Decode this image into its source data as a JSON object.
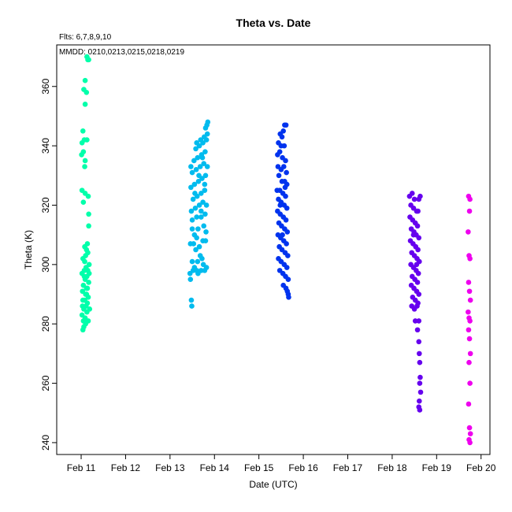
{
  "chart_data": {
    "type": "scatter",
    "title": "Theta  vs. Date",
    "annotations": {
      "flts": "Flts: 6,7,8,9,10",
      "mmdd": "MMDD: 0210,0213,0215,0218,0219"
    },
    "xlabel": "Date (UTC)",
    "ylabel": "Theta (K)",
    "x_unit": "days since Feb 11 00:00 UTC",
    "xlim": [
      -0.55,
      9.2
    ],
    "ylim": [
      236,
      374
    ],
    "x_ticks": [
      {
        "value": 0,
        "label": "Feb 11"
      },
      {
        "value": 1,
        "label": "Feb 12"
      },
      {
        "value": 2,
        "label": "Feb 13"
      },
      {
        "value": 3,
        "label": "Feb 14"
      },
      {
        "value": 4,
        "label": "Feb 15"
      },
      {
        "value": 5,
        "label": "Feb 16"
      },
      {
        "value": 6,
        "label": "Feb 17"
      },
      {
        "value": 7,
        "label": "Feb 18"
      },
      {
        "value": 8,
        "label": "Feb 19"
      },
      {
        "value": 9,
        "label": "Feb 20"
      }
    ],
    "y_ticks": [
      240,
      260,
      280,
      300,
      320,
      340,
      360
    ],
    "grid": false,
    "legend": "none",
    "series": [
      {
        "color": "#00ffaa",
        "points": [
          [
            0.13,
            370
          ],
          [
            0.15,
            369
          ],
          [
            0.17,
            369
          ],
          [
            0.09,
            362
          ],
          [
            0.06,
            359
          ],
          [
            0.12,
            358
          ],
          [
            0.09,
            354
          ],
          [
            0.04,
            345
          ],
          [
            0.07,
            342
          ],
          [
            0.13,
            342
          ],
          [
            0.02,
            341
          ],
          [
            0.05,
            338
          ],
          [
            0.01,
            337
          ],
          [
            0.09,
            335
          ],
          [
            0.08,
            333
          ],
          [
            0.02,
            325
          ],
          [
            0.09,
            324
          ],
          [
            0.16,
            323
          ],
          [
            0.05,
            321
          ],
          [
            0.17,
            317
          ],
          [
            0.17,
            313
          ],
          [
            0.14,
            307
          ],
          [
            0.08,
            306
          ],
          [
            0.12,
            305
          ],
          [
            0.15,
            304
          ],
          [
            0.1,
            303
          ],
          [
            0.04,
            302
          ],
          [
            0.18,
            300
          ],
          [
            0.11,
            299
          ],
          [
            0.15,
            298
          ],
          [
            0.07,
            298
          ],
          [
            0.02,
            297
          ],
          [
            0.13,
            296
          ],
          [
            0.09,
            295
          ],
          [
            0.17,
            294
          ],
          [
            0.05,
            293
          ],
          [
            0.12,
            292
          ],
          [
            0.03,
            291
          ],
          [
            0.1,
            290
          ],
          [
            0.16,
            289
          ],
          [
            0.08,
            288
          ],
          [
            0.04,
            288
          ],
          [
            0.14,
            287
          ],
          [
            0.11,
            286
          ],
          [
            0.06,
            285
          ],
          [
            0.19,
            285
          ],
          [
            0.13,
            284
          ],
          [
            0.02,
            283
          ],
          [
            0.09,
            282
          ],
          [
            0.16,
            281
          ],
          [
            0.05,
            281
          ],
          [
            0.1,
            280
          ],
          [
            0.06,
            279
          ],
          [
            0.04,
            278
          ],
          [
            0.12,
            290
          ],
          [
            0.07,
            296
          ],
          [
            0.14,
            292
          ],
          [
            0.03,
            286
          ],
          [
            0.18,
            297
          ],
          [
            0.08,
            301
          ]
        ]
      },
      {
        "color": "#00bbee",
        "points": [
          [
            2.49,
            286
          ],
          [
            2.48,
            288
          ],
          [
            2.46,
            295
          ],
          [
            2.45,
            297
          ],
          [
            2.52,
            298
          ],
          [
            2.55,
            299
          ],
          [
            2.6,
            298
          ],
          [
            2.63,
            297
          ],
          [
            2.7,
            298
          ],
          [
            2.75,
            300
          ],
          [
            2.78,
            298
          ],
          [
            2.82,
            299
          ],
          [
            2.5,
            301
          ],
          [
            2.62,
            301
          ],
          [
            2.72,
            302
          ],
          [
            2.68,
            303
          ],
          [
            2.58,
            305
          ],
          [
            2.46,
            307
          ],
          [
            2.53,
            307
          ],
          [
            2.66,
            306
          ],
          [
            2.74,
            308
          ],
          [
            2.8,
            308
          ],
          [
            2.55,
            310
          ],
          [
            2.63,
            312
          ],
          [
            2.76,
            313
          ],
          [
            2.5,
            315
          ],
          [
            2.6,
            316
          ],
          [
            2.7,
            316
          ],
          [
            2.79,
            317
          ],
          [
            2.48,
            318
          ],
          [
            2.57,
            319
          ],
          [
            2.66,
            320
          ],
          [
            2.74,
            321
          ],
          [
            2.82,
            320
          ],
          [
            2.52,
            322
          ],
          [
            2.61,
            323
          ],
          [
            2.7,
            324
          ],
          [
            2.78,
            325
          ],
          [
            2.47,
            326
          ],
          [
            2.55,
            327
          ],
          [
            2.64,
            328
          ],
          [
            2.72,
            329
          ],
          [
            2.8,
            330
          ],
          [
            2.5,
            331
          ],
          [
            2.59,
            332
          ],
          [
            2.68,
            333
          ],
          [
            2.76,
            334
          ],
          [
            2.84,
            333
          ],
          [
            2.54,
            335
          ],
          [
            2.62,
            336
          ],
          [
            2.71,
            337
          ],
          [
            2.79,
            338
          ],
          [
            2.58,
            339
          ],
          [
            2.66,
            340
          ],
          [
            2.74,
            341
          ],
          [
            2.82,
            342
          ],
          [
            2.69,
            342
          ],
          [
            2.77,
            343
          ],
          [
            2.84,
            344
          ],
          [
            2.8,
            346
          ],
          [
            2.83,
            347
          ],
          [
            2.85,
            348
          ],
          [
            2.6,
            341
          ],
          [
            2.73,
            336
          ],
          [
            2.5,
            312
          ],
          [
            2.81,
            311
          ],
          [
            2.56,
            324
          ],
          [
            2.65,
            330
          ],
          [
            2.78,
            327
          ],
          [
            2.47,
            333
          ],
          [
            2.7,
            318
          ],
          [
            2.6,
            309
          ]
        ]
      },
      {
        "color": "#0033ee",
        "points": [
          [
            4.55,
            345
          ],
          [
            4.58,
            347
          ],
          [
            4.61,
            347
          ],
          [
            4.48,
            344
          ],
          [
            4.52,
            343
          ],
          [
            4.44,
            341
          ],
          [
            4.5,
            340
          ],
          [
            4.57,
            340
          ],
          [
            4.42,
            337
          ],
          [
            4.47,
            338
          ],
          [
            4.53,
            336
          ],
          [
            4.6,
            335
          ],
          [
            4.43,
            333
          ],
          [
            4.5,
            332
          ],
          [
            4.56,
            333
          ],
          [
            4.62,
            331
          ],
          [
            4.45,
            330
          ],
          [
            4.52,
            328
          ],
          [
            4.58,
            328
          ],
          [
            4.63,
            327
          ],
          [
            4.41,
            325
          ],
          [
            4.47,
            325
          ],
          [
            4.54,
            324
          ],
          [
            4.6,
            323
          ],
          [
            4.44,
            322
          ],
          [
            4.5,
            321
          ],
          [
            4.57,
            320
          ],
          [
            4.63,
            319
          ],
          [
            4.42,
            318
          ],
          [
            4.48,
            317
          ],
          [
            4.55,
            316
          ],
          [
            4.61,
            315
          ],
          [
            4.45,
            314
          ],
          [
            4.51,
            313
          ],
          [
            4.58,
            312
          ],
          [
            4.64,
            311
          ],
          [
            4.43,
            310
          ],
          [
            4.49,
            309
          ],
          [
            4.56,
            308
          ],
          [
            4.62,
            307
          ],
          [
            4.46,
            306
          ],
          [
            4.52,
            305
          ],
          [
            4.59,
            304
          ],
          [
            4.65,
            303
          ],
          [
            4.44,
            302
          ],
          [
            4.5,
            301
          ],
          [
            4.57,
            300
          ],
          [
            4.63,
            299
          ],
          [
            4.47,
            298
          ],
          [
            4.54,
            297
          ],
          [
            4.6,
            296
          ],
          [
            4.66,
            295
          ],
          [
            4.55,
            293
          ],
          [
            4.61,
            292
          ],
          [
            4.64,
            291
          ],
          [
            4.66,
            290
          ],
          [
            4.67,
            289
          ],
          [
            4.48,
            320
          ],
          [
            4.59,
            326
          ],
          [
            4.53,
            310
          ]
        ]
      },
      {
        "color": "#6600ee",
        "points": [
          [
            7.39,
            323
          ],
          [
            7.45,
            324
          ],
          [
            7.5,
            322
          ],
          [
            7.6,
            322
          ],
          [
            7.63,
            323
          ],
          [
            7.42,
            320
          ],
          [
            7.48,
            319
          ],
          [
            7.55,
            318
          ],
          [
            7.58,
            318
          ],
          [
            7.4,
            316
          ],
          [
            7.46,
            315
          ],
          [
            7.52,
            314
          ],
          [
            7.57,
            313
          ],
          [
            7.43,
            312
          ],
          [
            7.49,
            311
          ],
          [
            7.54,
            310
          ],
          [
            7.6,
            309
          ],
          [
            7.41,
            308
          ],
          [
            7.47,
            307
          ],
          [
            7.53,
            306
          ],
          [
            7.58,
            305
          ],
          [
            7.44,
            304
          ],
          [
            7.5,
            303
          ],
          [
            7.56,
            302
          ],
          [
            7.61,
            301
          ],
          [
            7.42,
            300
          ],
          [
            7.48,
            299
          ],
          [
            7.54,
            298
          ],
          [
            7.59,
            297
          ],
          [
            7.45,
            296
          ],
          [
            7.51,
            295
          ],
          [
            7.57,
            294
          ],
          [
            7.43,
            293
          ],
          [
            7.49,
            292
          ],
          [
            7.55,
            291
          ],
          [
            7.6,
            290
          ],
          [
            7.46,
            289
          ],
          [
            7.52,
            288
          ],
          [
            7.58,
            287
          ],
          [
            7.44,
            286
          ],
          [
            7.5,
            285
          ],
          [
            7.56,
            286
          ],
          [
            7.52,
            281
          ],
          [
            7.6,
            281
          ],
          [
            7.57,
            278
          ],
          [
            7.6,
            274
          ],
          [
            7.61,
            270
          ],
          [
            7.62,
            267
          ],
          [
            7.63,
            262
          ],
          [
            7.62,
            260
          ],
          [
            7.64,
            257
          ],
          [
            7.61,
            254
          ],
          [
            7.6,
            252
          ],
          [
            7.62,
            251
          ],
          [
            7.48,
            310
          ],
          [
            7.55,
            300
          ]
        ]
      },
      {
        "color": "#ee00ee",
        "points": [
          [
            8.72,
            323
          ],
          [
            8.75,
            322
          ],
          [
            8.74,
            318
          ],
          [
            8.71,
            311
          ],
          [
            8.73,
            303
          ],
          [
            8.75,
            302
          ],
          [
            8.72,
            294
          ],
          [
            8.74,
            291
          ],
          [
            8.76,
            288
          ],
          [
            8.71,
            284
          ],
          [
            8.73,
            282
          ],
          [
            8.75,
            281
          ],
          [
            8.72,
            278
          ],
          [
            8.74,
            275
          ],
          [
            8.76,
            270
          ],
          [
            8.73,
            267
          ],
          [
            8.75,
            260
          ],
          [
            8.72,
            253
          ],
          [
            8.74,
            245
          ],
          [
            8.76,
            243
          ],
          [
            8.73,
            241
          ],
          [
            8.75,
            240
          ]
        ]
      }
    ]
  }
}
